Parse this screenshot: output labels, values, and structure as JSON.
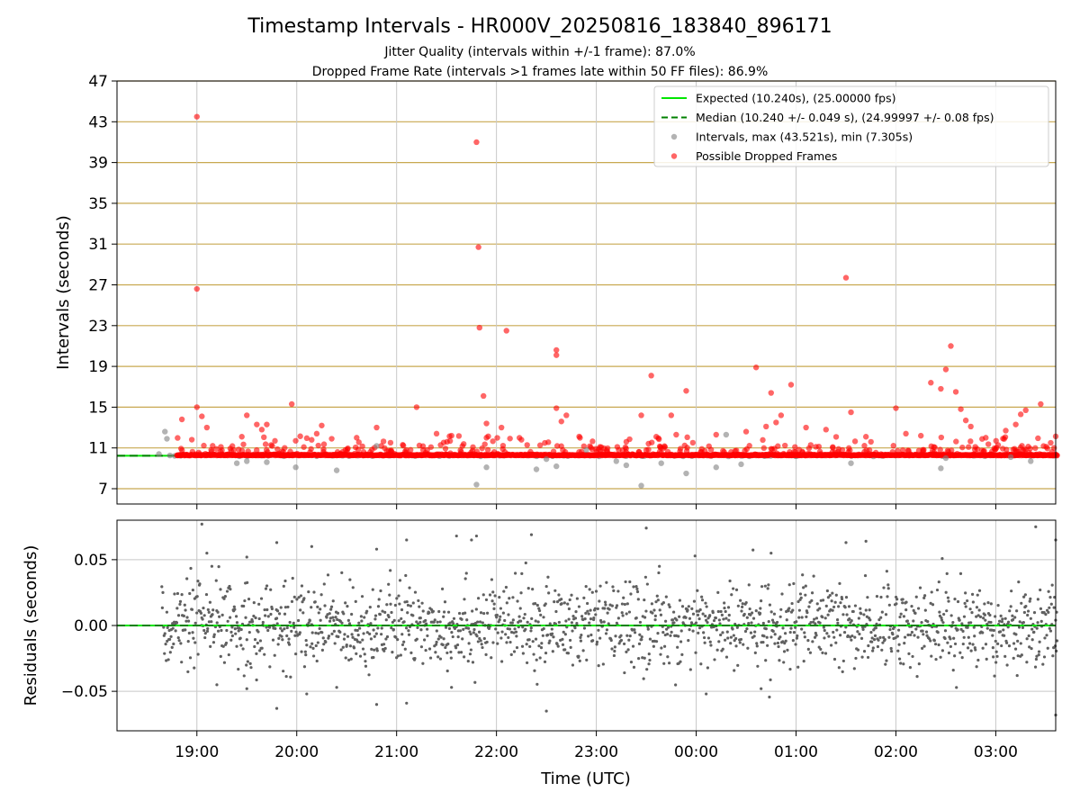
{
  "chart_data": [
    {
      "type": "scatter",
      "panel": "intervals",
      "title": "Timestamp Intervals - HR000V_20250816_183840_896171",
      "subtitle_lines": [
        "Jitter Quality (intervals within +/-1 frame): 87.0%",
        "Dropped Frame Rate (intervals >1 frames late within 50 FF files): 86.9%"
      ],
      "ylabel": "Intervals (seconds)",
      "ylim": [
        5.5,
        47
      ],
      "yticks": [
        "7",
        "11",
        "15",
        "19",
        "23",
        "27",
        "31",
        "35",
        "39",
        "43",
        "47"
      ],
      "xlim_hours": [
        18.2,
        27.6
      ],
      "grid": "on",
      "legend_position": "top-right",
      "legend": [
        {
          "label": "Expected (10.240s), (25.00000 fps)",
          "style": "line",
          "color": "#00e600"
        },
        {
          "label": "Median (10.240 +/- 0.049 s), (24.99997 +/- 0.08 fps)",
          "style": "dashed",
          "color": "#008000"
        },
        {
          "label": "Intervals, max (43.521s), min (7.305s)",
          "style": "marker",
          "color": "#808080"
        },
        {
          "label": "Possible Dropped Frames",
          "style": "marker",
          "color": "#ff0000"
        }
      ],
      "expected_value": 10.24,
      "median_value": 10.24,
      "dropped_outliers": [
        [
          19.0,
          43.5
        ],
        [
          19.0,
          26.6
        ],
        [
          19.0,
          15.0
        ],
        [
          19.05,
          14.1
        ],
        [
          19.1,
          13.0
        ],
        [
          18.85,
          13.8
        ],
        [
          19.5,
          14.2
        ],
        [
          19.6,
          13.3
        ],
        [
          19.7,
          13.3
        ],
        [
          19.65,
          12.8
        ],
        [
          19.45,
          12.1
        ],
        [
          19.95,
          15.3
        ],
        [
          20.2,
          12.4
        ],
        [
          20.25,
          13.2
        ],
        [
          20.35,
          11.9
        ],
        [
          20.6,
          12.0
        ],
        [
          20.8,
          13.0
        ],
        [
          21.2,
          15.0
        ],
        [
          21.4,
          12.4
        ],
        [
          21.55,
          12.2
        ],
        [
          21.8,
          41.0
        ],
        [
          21.82,
          30.7
        ],
        [
          21.83,
          22.8
        ],
        [
          21.87,
          16.1
        ],
        [
          21.9,
          13.4
        ],
        [
          21.9,
          12.0
        ],
        [
          22.05,
          13.0
        ],
        [
          22.1,
          22.5
        ],
        [
          22.25,
          11.8
        ],
        [
          22.6,
          20.6
        ],
        [
          22.6,
          20.1
        ],
        [
          22.6,
          14.9
        ],
        [
          22.7,
          14.2
        ],
        [
          22.65,
          13.6
        ],
        [
          23.3,
          11.6
        ],
        [
          23.45,
          14.2
        ],
        [
          23.55,
          18.1
        ],
        [
          23.6,
          12.1
        ],
        [
          23.75,
          14.2
        ],
        [
          23.9,
          16.6
        ],
        [
          23.8,
          12.3
        ],
        [
          24.2,
          12.3
        ],
        [
          24.5,
          12.6
        ],
        [
          24.6,
          18.9
        ],
        [
          24.7,
          13.1
        ],
        [
          24.8,
          13.5
        ],
        [
          24.85,
          14.2
        ],
        [
          24.75,
          16.4
        ],
        [
          24.95,
          17.2
        ],
        [
          25.1,
          13.0
        ],
        [
          25.3,
          12.8
        ],
        [
          25.5,
          27.7
        ],
        [
          25.55,
          14.5
        ],
        [
          25.7,
          12.1
        ],
        [
          25.75,
          11.6
        ],
        [
          26.0,
          14.9
        ],
        [
          26.1,
          12.4
        ],
        [
          26.25,
          12.2
        ],
        [
          26.35,
          17.4
        ],
        [
          26.45,
          16.8
        ],
        [
          26.5,
          18.7
        ],
        [
          26.55,
          21.0
        ],
        [
          26.6,
          16.5
        ],
        [
          26.65,
          14.8
        ],
        [
          26.7,
          13.7
        ],
        [
          26.75,
          13.1
        ],
        [
          26.9,
          12.0
        ],
        [
          27.1,
          12.7
        ],
        [
          27.2,
          13.3
        ],
        [
          27.25,
          14.3
        ],
        [
          27.3,
          14.7
        ],
        [
          27.45,
          15.3
        ],
        [
          27.55,
          11.5
        ]
      ],
      "interval_outliers": [
        [
          18.68,
          12.6
        ],
        [
          18.7,
          11.9
        ],
        [
          18.62,
          10.4
        ],
        [
          19.4,
          9.5
        ],
        [
          19.5,
          9.7
        ],
        [
          19.7,
          9.6
        ],
        [
          19.99,
          9.1
        ],
        [
          20.4,
          8.8
        ],
        [
          20.8,
          11.2
        ],
        [
          21.8,
          7.4
        ],
        [
          21.9,
          9.1
        ],
        [
          22.4,
          8.9
        ],
        [
          22.5,
          9.9
        ],
        [
          22.6,
          9.2
        ],
        [
          22.9,
          10.8
        ],
        [
          23.2,
          9.7
        ],
        [
          23.3,
          9.3
        ],
        [
          23.45,
          7.3
        ],
        [
          23.65,
          9.5
        ],
        [
          23.9,
          8.5
        ],
        [
          24.2,
          9.1
        ],
        [
          24.45,
          9.4
        ],
        [
          24.3,
          12.3
        ],
        [
          25.55,
          9.5
        ],
        [
          26.45,
          9.0
        ],
        [
          26.5,
          10.0
        ],
        [
          27.15,
          10.1
        ],
        [
          27.35,
          9.7
        ]
      ]
    },
    {
      "type": "scatter",
      "panel": "residuals",
      "xlabel": "Time (UTC)",
      "ylabel": "Residuals (seconds)",
      "ylim": [
        -0.08,
        0.08
      ],
      "yticks": [
        "0.05",
        "0.00",
        "−0.05"
      ],
      "xticks": [
        "19:00",
        "20:00",
        "21:00",
        "22:00",
        "23:00",
        "00:00",
        "01:00",
        "02:00",
        "03:00"
      ],
      "xtick_hours": [
        19,
        20,
        21,
        22,
        23,
        24,
        25,
        26,
        27
      ],
      "xlim_hours": [
        18.2,
        27.6
      ],
      "grid": "on",
      "zero_line_color": "#00e600",
      "residual_std": 0.016,
      "residual_outliers": [
        [
          19.05,
          0.077
        ],
        [
          19.1,
          0.055
        ],
        [
          19.15,
          0.045
        ],
        [
          19.5,
          0.052
        ],
        [
          19.8,
          0.063
        ],
        [
          20.15,
          0.06
        ],
        [
          20.8,
          0.058
        ],
        [
          21.1,
          0.065
        ],
        [
          21.6,
          0.068
        ],
        [
          21.75,
          0.065
        ],
        [
          21.8,
          0.068
        ],
        [
          22.35,
          0.069
        ],
        [
          23.5,
          0.074
        ],
        [
          24.75,
          0.055
        ],
        [
          25.5,
          0.063
        ],
        [
          25.7,
          0.064
        ],
        [
          27.4,
          0.075
        ],
        [
          27.6,
          0.065
        ],
        [
          19.2,
          -0.045
        ],
        [
          19.5,
          -0.048
        ],
        [
          19.8,
          -0.063
        ],
        [
          20.1,
          -0.052
        ],
        [
          20.4,
          -0.047
        ],
        [
          20.8,
          -0.06
        ],
        [
          21.1,
          -0.059
        ],
        [
          21.55,
          -0.047
        ],
        [
          22.5,
          -0.065
        ],
        [
          24.1,
          -0.052
        ],
        [
          24.65,
          -0.048
        ],
        [
          27.6,
          -0.068
        ]
      ],
      "residual_point_count": 1700,
      "time_range_hours": [
        18.65,
        27.62
      ],
      "marker_color": "#606060"
    }
  ],
  "colors": {
    "dropped": "#ff0000",
    "interval": "#808080",
    "expected": "#00e600",
    "median": "#008000",
    "hgrid_top": "#c8a850"
  }
}
